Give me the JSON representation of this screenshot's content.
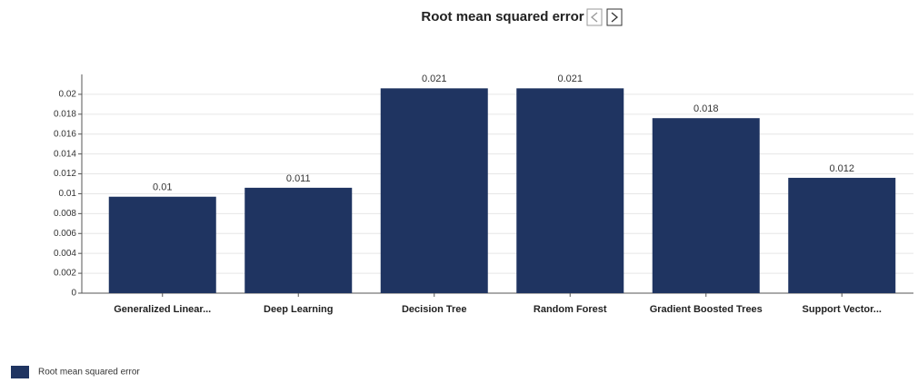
{
  "chart_data": {
    "type": "bar",
    "title": "Root mean squared error",
    "categories": [
      "Generalized Linear...",
      "Deep Learning",
      "Decision Tree",
      "Random Forest",
      "Gradient Boosted Trees",
      "Support Vector..."
    ],
    "series": [
      {
        "name": "Root mean squared error",
        "color": "#1f3461",
        "values": [
          0.0097,
          0.0106,
          0.0206,
          0.0206,
          0.0176,
          0.0116
        ],
        "value_labels": [
          "0.01",
          "0.011",
          "0.021",
          "0.021",
          "0.018",
          "0.012"
        ]
      }
    ],
    "ylim": [
      0,
      0.022
    ],
    "yticks": [
      0,
      0.002,
      0.004,
      0.006,
      0.008,
      0.01,
      0.012,
      0.014,
      0.016,
      0.018,
      0.02
    ],
    "grid": true,
    "legend": "bottom-left"
  }
}
